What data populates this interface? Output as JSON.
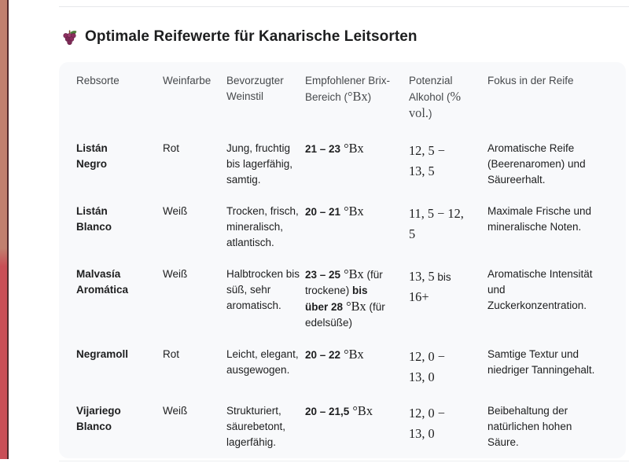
{
  "page": {
    "title": "Optimale Reifewerte für Kanarische Leitsorten",
    "title_icon": "grapes-icon"
  },
  "colors": {
    "bar_top": "#c1806f",
    "bar_bottom": "#c94f56",
    "bar_edge": "#52292b",
    "divider": "#e6e8ea",
    "panel": "#f8f9fb",
    "title": "#1d1e1f",
    "head": "#46494c",
    "body": "#1d1e1f",
    "grape": "#8c2f5f",
    "leaf": "#4e7d3a"
  },
  "table": {
    "columns": [
      [
        {
          "t": "Rebsorte",
          "s": "n"
        }
      ],
      [
        {
          "t": "Weinfarbe",
          "s": "n"
        }
      ],
      [
        {
          "t": "Bevorzugter Weinstil",
          "s": "n"
        }
      ],
      [
        {
          "t": "Empfohlener Brix-Bereich (",
          "s": "n"
        },
        {
          "t": "°Bx",
          "s": "m"
        },
        {
          "t": ")",
          "s": "n"
        }
      ],
      [
        {
          "t": "Potenzial Alkohol (",
          "s": "n"
        },
        {
          "t": "% vol.",
          "s": "m"
        },
        {
          "t": ")",
          "s": "n"
        }
      ],
      [
        {
          "t": "Fokus in der Reife",
          "s": "n"
        }
      ]
    ],
    "rows": [
      {
        "cells": [
          [
            {
              "t": "Listán Negro",
              "s": "b"
            }
          ],
          [
            {
              "t": "Rot",
              "s": "n"
            }
          ],
          [
            {
              "t": "Jung, fruchtig bis lagerfähig, samtig.",
              "s": "n"
            }
          ],
          [
            {
              "t": "21 – 23",
              "s": "b"
            },
            {
              "t": " °Bx",
              "s": "m"
            }
          ],
          [
            {
              "t": "12, 5 − 13, 5",
              "s": "m"
            }
          ],
          [
            {
              "t": "Aromatische Reife (Beerenaromen) und Säureerhalt.",
              "s": "n"
            }
          ]
        ]
      },
      {
        "cells": [
          [
            {
              "t": "Listán Blanco",
              "s": "b"
            }
          ],
          [
            {
              "t": "Weiß",
              "s": "n"
            }
          ],
          [
            {
              "t": "Trocken, frisch, mineralisch, atlantisch.",
              "s": "n"
            }
          ],
          [
            {
              "t": "20 – 21",
              "s": "b"
            },
            {
              "t": " °Bx",
              "s": "m"
            }
          ],
          [
            {
              "t": "11, 5 − 12, 5",
              "s": "m"
            }
          ],
          [
            {
              "t": "Maximale Frische und mineralische Noten.",
              "s": "n"
            }
          ]
        ]
      },
      {
        "cells": [
          [
            {
              "t": "Malvasía Aromática",
              "s": "b"
            }
          ],
          [
            {
              "t": "Weiß",
              "s": "n"
            }
          ],
          [
            {
              "t": "Halbtrocken bis süß, sehr aromatisch.",
              "s": "n"
            }
          ],
          [
            {
              "t": "23 – 25",
              "s": "b"
            },
            {
              "t": " °Bx",
              "s": "m"
            },
            {
              "t": " (für trockene) ",
              "s": "n"
            },
            {
              "t": "bis über 28",
              "s": "b"
            },
            {
              "t": " °Bx",
              "s": "m"
            },
            {
              "t": " (für edelsüße)",
              "s": "n"
            }
          ],
          [
            {
              "t": "13, 5",
              "s": "m"
            },
            {
              "t": " bis ",
              "s": "n"
            },
            {
              "t": "16+",
              "s": "m"
            }
          ],
          [
            {
              "t": "Aromatische Intensität und Zuckerkonzentration.",
              "s": "n"
            }
          ]
        ]
      },
      {
        "cells": [
          [
            {
              "t": "Negramoll",
              "s": "b"
            }
          ],
          [
            {
              "t": "Rot",
              "s": "n"
            }
          ],
          [
            {
              "t": "Leicht, elegant, ausgewogen.",
              "s": "n"
            }
          ],
          [
            {
              "t": "20 – 22",
              "s": "b"
            },
            {
              "t": " °Bx",
              "s": "m"
            }
          ],
          [
            {
              "t": "12, 0 − 13, 0",
              "s": "m"
            }
          ],
          [
            {
              "t": "Samtige Textur und niedriger Tanningehalt.",
              "s": "n"
            }
          ]
        ]
      },
      {
        "cells": [
          [
            {
              "t": "Vijariego Blanco",
              "s": "b"
            }
          ],
          [
            {
              "t": "Weiß",
              "s": "n"
            }
          ],
          [
            {
              "t": "Strukturiert, säurebetont, lagerfähig.",
              "s": "n"
            }
          ],
          [
            {
              "t": "20 – 21,5",
              "s": "b"
            },
            {
              "t": " °Bx",
              "s": "m"
            }
          ],
          [
            {
              "t": "12, 0 − 13, 0",
              "s": "m"
            }
          ],
          [
            {
              "t": "Beibehaltung der natürlichen hohen Säure.",
              "s": "n"
            }
          ]
        ]
      }
    ]
  }
}
